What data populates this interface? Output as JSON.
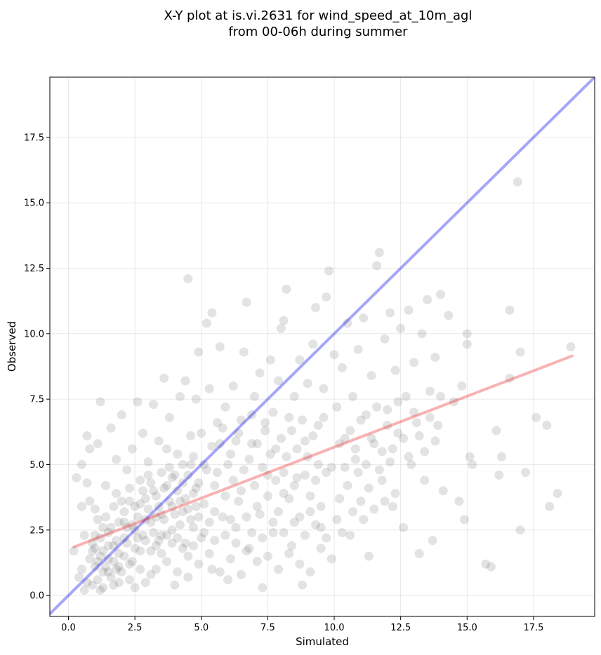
{
  "chart_data": {
    "type": "scatter",
    "title": "X-Y plot at is.vi.2631 for wind_speed_at_10m_agl",
    "subtitle": "from 00-06h during summer",
    "xlabel": "Simulated",
    "ylabel": "Observed",
    "xlim": [
      -0.7,
      19.8
    ],
    "ylim": [
      -0.8,
      19.8
    ],
    "xticks": [
      "0.0",
      "2.5",
      "5.0",
      "7.5",
      "10.0",
      "12.5",
      "15.0",
      "17.5"
    ],
    "yticks": [
      "0.0",
      "2.5",
      "5.0",
      "7.5",
      "10.0",
      "12.5",
      "15.0",
      "17.5"
    ],
    "grid": true,
    "point_color": "#404040",
    "point_opacity": 0.15,
    "reference_line": {
      "color": "#0000ee",
      "x": [
        -0.7,
        19.8
      ],
      "y": [
        -0.7,
        19.8
      ]
    },
    "regression_line": {
      "color": "#ee2222",
      "x": [
        0.2,
        18.95
      ],
      "y": [
        1.85,
        9.15
      ]
    },
    "points": [
      [
        0.2,
        1.7
      ],
      [
        0.3,
        4.5
      ],
      [
        0.4,
        0.7
      ],
      [
        0.5,
        3.4
      ],
      [
        0.5,
        5.0
      ],
      [
        0.6,
        2.3
      ],
      [
        0.7,
        6.1
      ],
      [
        0.7,
        4.3
      ],
      [
        0.8,
        3.6
      ],
      [
        0.8,
        5.6
      ],
      [
        0.9,
        0.4
      ],
      [
        0.9,
        2.0
      ],
      [
        1.0,
        1.1
      ],
      [
        1.0,
        3.3
      ],
      [
        1.1,
        5.8
      ],
      [
        1.2,
        7.4
      ],
      [
        1.2,
        0.2
      ],
      [
        1.3,
        2.6
      ],
      [
        1.4,
        4.2
      ],
      [
        1.5,
        0.9
      ],
      [
        1.6,
        6.4
      ],
      [
        1.7,
        1.9
      ],
      [
        1.8,
        3.9
      ],
      [
        1.8,
        5.2
      ],
      [
        1.9,
        0.5
      ],
      [
        2.0,
        6.9
      ],
      [
        2.1,
        2.8
      ],
      [
        2.2,
        4.8
      ],
      [
        2.3,
        1.2
      ],
      [
        2.4,
        5.6
      ],
      [
        2.5,
        0.3
      ],
      [
        2.6,
        7.4
      ],
      [
        2.7,
        3.5
      ],
      [
        2.8,
        6.2
      ],
      [
        2.9,
        2.1
      ],
      [
        3.0,
        4.6
      ],
      [
        3.1,
        0.8
      ],
      [
        3.2,
        7.3
      ],
      [
        3.3,
        3.0
      ],
      [
        3.4,
        5.9
      ],
      [
        3.5,
        1.6
      ],
      [
        3.6,
        8.3
      ],
      [
        3.7,
        4.2
      ],
      [
        3.8,
        6.8
      ],
      [
        3.9,
        2.5
      ],
      [
        4.0,
        0.4
      ],
      [
        4.1,
        5.4
      ],
      [
        4.2,
        7.6
      ],
      [
        4.3,
        3.2
      ],
      [
        4.4,
        8.2
      ],
      [
        4.5,
        12.1
      ],
      [
        4.5,
        1.5
      ],
      [
        4.6,
        6.1
      ],
      [
        4.7,
        3.9
      ],
      [
        4.8,
        7.5
      ],
      [
        4.9,
        9.3
      ],
      [
        5.0,
        2.2
      ],
      [
        5.1,
        5.0
      ],
      [
        5.2,
        10.4
      ],
      [
        5.3,
        7.9
      ],
      [
        5.4,
        10.8
      ],
      [
        5.4,
        1.0
      ],
      [
        5.5,
        4.2
      ],
      [
        5.6,
        6.6
      ],
      [
        5.7,
        9.5
      ],
      [
        5.8,
        3.0
      ],
      [
        5.9,
        7.2
      ],
      [
        6.0,
        0.6
      ],
      [
        6.1,
        5.4
      ],
      [
        6.2,
        8.0
      ],
      [
        6.3,
        2.6
      ],
      [
        6.4,
        6.2
      ],
      [
        6.5,
        4.0
      ],
      [
        6.6,
        9.3
      ],
      [
        6.7,
        11.2
      ],
      [
        6.8,
        1.8
      ],
      [
        6.9,
        5.8
      ],
      [
        7.0,
        7.6
      ],
      [
        7.1,
        3.4
      ],
      [
        7.2,
        8.5
      ],
      [
        7.3,
        0.3
      ],
      [
        7.4,
        6.3
      ],
      [
        7.5,
        4.6
      ],
      [
        7.6,
        9.0
      ],
      [
        7.7,
        2.4
      ],
      [
        7.8,
        5.6
      ],
      [
        7.9,
        8.2
      ],
      [
        8.0,
        10.2
      ],
      [
        8.1,
        3.9
      ],
      [
        8.1,
        10.5
      ],
      [
        8.2,
        11.7
      ],
      [
        8.3,
        6.8
      ],
      [
        8.4,
        1.9
      ],
      [
        8.5,
        7.6
      ],
      [
        8.6,
        4.5
      ],
      [
        8.7,
        9.0
      ],
      [
        8.8,
        0.4
      ],
      [
        8.9,
        5.9
      ],
      [
        9.0,
        8.1
      ],
      [
        9.1,
        3.2
      ],
      [
        9.2,
        9.6
      ],
      [
        9.3,
        11.0
      ],
      [
        9.4,
        6.5
      ],
      [
        9.5,
        2.6
      ],
      [
        9.6,
        7.9
      ],
      [
        9.7,
        11.4
      ],
      [
        9.8,
        12.4
      ],
      [
        9.9,
        4.9
      ],
      [
        10.0,
        9.2
      ],
      [
        10.1,
        7.2
      ],
      [
        10.2,
        3.7
      ],
      [
        10.3,
        8.7
      ],
      [
        10.4,
        6.0
      ],
      [
        10.5,
        10.4
      ],
      [
        10.6,
        2.3
      ],
      [
        10.7,
        7.6
      ],
      [
        10.8,
        5.2
      ],
      [
        10.9,
        9.4
      ],
      [
        11.0,
        3.6
      ],
      [
        11.1,
        10.6
      ],
      [
        11.2,
        6.9
      ],
      [
        11.3,
        1.5
      ],
      [
        11.4,
        8.4
      ],
      [
        11.5,
        5.8
      ],
      [
        11.6,
        12.6
      ],
      [
        11.7,
        13.1
      ],
      [
        11.8,
        4.4
      ],
      [
        11.9,
        9.8
      ],
      [
        12.0,
        7.1
      ],
      [
        12.1,
        10.8
      ],
      [
        12.2,
        3.4
      ],
      [
        12.3,
        8.6
      ],
      [
        12.4,
        6.2
      ],
      [
        12.5,
        10.2
      ],
      [
        12.6,
        2.6
      ],
      [
        12.7,
        7.6
      ],
      [
        12.8,
        10.9
      ],
      [
        12.9,
        5.0
      ],
      [
        13.0,
        8.9
      ],
      [
        13.1,
        6.6
      ],
      [
        13.2,
        1.6
      ],
      [
        13.3,
        10.0
      ],
      [
        13.4,
        4.4
      ],
      [
        13.5,
        11.3
      ],
      [
        13.6,
        7.8
      ],
      [
        13.7,
        2.1
      ],
      [
        13.8,
        9.1
      ],
      [
        13.9,
        6.5
      ],
      [
        14.0,
        11.5
      ],
      [
        14.1,
        4.0
      ],
      [
        14.3,
        10.7
      ],
      [
        14.5,
        7.4
      ],
      [
        14.7,
        3.6
      ],
      [
        14.8,
        8.0
      ],
      [
        14.9,
        2.9
      ],
      [
        15.0,
        10.0
      ],
      [
        15.0,
        9.6
      ],
      [
        15.1,
        5.3
      ],
      [
        15.2,
        5.0
      ],
      [
        15.7,
        1.2
      ],
      [
        15.9,
        1.1
      ],
      [
        16.1,
        6.3
      ],
      [
        16.2,
        4.6
      ],
      [
        16.3,
        5.3
      ],
      [
        16.6,
        10.9
      ],
      [
        16.6,
        8.3
      ],
      [
        16.9,
        15.8
      ],
      [
        17.0,
        9.3
      ],
      [
        17.0,
        2.5
      ],
      [
        17.2,
        4.7
      ],
      [
        17.6,
        6.8
      ],
      [
        18.0,
        6.5
      ],
      [
        18.1,
        3.4
      ],
      [
        18.4,
        3.9
      ],
      [
        18.9,
        9.5
      ],
      [
        0.6,
        0.2
      ],
      [
        0.8,
        1.4
      ],
      [
        1.0,
        2.3
      ],
      [
        1.1,
        0.6
      ],
      [
        1.2,
        1.5
      ],
      [
        1.3,
        0.3
      ],
      [
        1.4,
        1.1
      ],
      [
        1.5,
        2.4
      ],
      [
        1.6,
        0.7
      ],
      [
        1.7,
        1.3
      ],
      [
        1.8,
        2.1
      ],
      [
        1.9,
        1.6
      ],
      [
        2.0,
        0.9
      ],
      [
        2.1,
        3.2
      ],
      [
        2.2,
        2.0
      ],
      [
        2.3,
        3.6
      ],
      [
        2.4,
        2.7
      ],
      [
        2.5,
        1.8
      ],
      [
        2.6,
        3.0
      ],
      [
        2.7,
        4.4
      ],
      [
        2.8,
        2.3
      ],
      [
        2.9,
        3.7
      ],
      [
        3.0,
        5.1
      ],
      [
        3.1,
        2.8
      ],
      [
        3.2,
        4.0
      ],
      [
        3.3,
        1.9
      ],
      [
        3.4,
        3.4
      ],
      [
        3.5,
        4.7
      ],
      [
        3.6,
        2.9
      ],
      [
        3.7,
        5.6
      ],
      [
        3.8,
        3.6
      ],
      [
        3.9,
        4.5
      ],
      [
        4.0,
        3.1
      ],
      [
        4.1,
        4.0
      ],
      [
        4.2,
        2.7
      ],
      [
        4.3,
        5.0
      ],
      [
        4.4,
        3.7
      ],
      [
        4.5,
        4.6
      ],
      [
        4.6,
        2.9
      ],
      [
        4.7,
        5.3
      ],
      [
        4.8,
        3.4
      ],
      [
        4.9,
        4.3
      ],
      [
        5.0,
        6.2
      ],
      [
        5.1,
        3.5
      ],
      [
        5.2,
        4.8
      ],
      [
        5.3,
        2.8
      ],
      [
        5.4,
        5.7
      ],
      [
        5.5,
        3.2
      ],
      [
        5.6,
        4.7
      ],
      [
        5.7,
        5.8
      ],
      [
        5.8,
        6.4
      ],
      [
        5.9,
        3.8
      ],
      [
        6.0,
        5.0
      ],
      [
        6.1,
        2.9
      ],
      [
        6.2,
        4.4
      ],
      [
        6.3,
        5.9
      ],
      [
        6.4,
        3.6
      ],
      [
        6.5,
        6.7
      ],
      [
        6.6,
        4.8
      ],
      [
        6.7,
        3.0
      ],
      [
        6.8,
        5.2
      ],
      [
        6.9,
        6.9
      ],
      [
        7.0,
        4.2
      ],
      [
        7.1,
        5.8
      ],
      [
        7.2,
        3.1
      ],
      [
        7.3,
        4.9
      ],
      [
        7.4,
        6.6
      ],
      [
        7.5,
        3.8
      ],
      [
        7.6,
        5.4
      ],
      [
        7.7,
        7.0
      ],
      [
        7.8,
        4.4
      ],
      [
        7.9,
        3.2
      ],
      [
        8.0,
        6.0
      ],
      [
        8.1,
        4.7
      ],
      [
        8.2,
        5.3
      ],
      [
        8.3,
        3.7
      ],
      [
        8.4,
        6.3
      ],
      [
        8.5,
        4.2
      ],
      [
        8.6,
        5.6
      ],
      [
        8.7,
        3.0
      ],
      [
        8.8,
        6.7
      ],
      [
        8.9,
        4.6
      ],
      [
        9.0,
        5.3
      ],
      [
        9.1,
        3.8
      ],
      [
        9.2,
        6.1
      ],
      [
        9.3,
        4.4
      ],
      [
        9.4,
        5.0
      ],
      [
        9.5,
        3.4
      ],
      [
        9.6,
        6.8
      ],
      [
        9.7,
        4.7
      ],
      [
        1.0,
        1.8
      ],
      [
        1.1,
        2.9
      ],
      [
        1.2,
        2.2
      ],
      [
        1.3,
        1.7
      ],
      [
        1.4,
        3.0
      ],
      [
        1.5,
        1.4
      ],
      [
        1.6,
        2.6
      ],
      [
        1.7,
        3.4
      ],
      [
        1.8,
        1.0
      ],
      [
        1.9,
        2.8
      ],
      [
        2.0,
        3.6
      ],
      [
        2.1,
        1.5
      ],
      [
        2.2,
        2.6
      ],
      [
        2.3,
        4.1
      ],
      [
        2.4,
        1.3
      ],
      [
        2.5,
        3.4
      ],
      [
        2.6,
        2.2
      ],
      [
        2.7,
        1.0
      ],
      [
        2.8,
        4.0
      ],
      [
        2.9,
        2.9
      ],
      [
        3.0,
        3.3
      ],
      [
        3.1,
        4.3
      ],
      [
        3.2,
        2.4
      ],
      [
        3.3,
        3.8
      ],
      [
        3.4,
        2.1
      ],
      [
        3.5,
        3.1
      ],
      [
        3.6,
        4.1
      ],
      [
        3.7,
        2.3
      ],
      [
        3.8,
        4.9
      ],
      [
        3.9,
        3.4
      ],
      [
        4.0,
        4.6
      ],
      [
        4.1,
        2.2
      ],
      [
        4.2,
        3.6
      ],
      [
        4.3,
        4.3
      ],
      [
        4.4,
        2.0
      ],
      [
        4.5,
        3.3
      ],
      [
        4.6,
        5.0
      ],
      [
        4.7,
        2.6
      ],
      [
        4.8,
        4.1
      ],
      [
        4.9,
        3.0
      ],
      [
        0.5,
        1.0
      ],
      [
        0.7,
        0.5
      ],
      [
        0.9,
        1.7
      ],
      [
        1.1,
        1.3
      ],
      [
        1.3,
        0.9
      ],
      [
        1.5,
        1.9
      ],
      [
        1.7,
        0.4
      ],
      [
        1.9,
        1.1
      ],
      [
        2.1,
        2.2
      ],
      [
        2.3,
        0.6
      ],
      [
        2.5,
        2.5
      ],
      [
        2.7,
        1.7
      ],
      [
        2.9,
        0.5
      ],
      [
        3.1,
        1.7
      ],
      [
        3.3,
        1.0
      ],
      [
        3.5,
        2.3
      ],
      [
        3.7,
        1.3
      ],
      [
        3.9,
        2.0
      ],
      [
        4.1,
        0.9
      ],
      [
        4.3,
        1.8
      ],
      [
        4.5,
        0.7
      ],
      [
        4.7,
        1.9
      ],
      [
        4.9,
        1.2
      ],
      [
        5.1,
        2.4
      ],
      [
        5.3,
        1.6
      ],
      [
        5.5,
        2.1
      ],
      [
        5.7,
        0.9
      ],
      [
        5.9,
        2.3
      ],
      [
        6.1,
        1.4
      ],
      [
        6.3,
        2.0
      ],
      [
        6.5,
        0.8
      ],
      [
        6.7,
        1.7
      ],
      [
        6.9,
        2.4
      ],
      [
        7.1,
        1.3
      ],
      [
        7.3,
        2.2
      ],
      [
        7.5,
        1.5
      ],
      [
        7.7,
        2.8
      ],
      [
        7.9,
        1.0
      ],
      [
        8.1,
        2.4
      ],
      [
        8.3,
        1.6
      ],
      [
        8.5,
        2.8
      ],
      [
        8.7,
        1.2
      ],
      [
        8.9,
        2.3
      ],
      [
        9.1,
        0.9
      ],
      [
        9.3,
        2.7
      ],
      [
        9.5,
        1.8
      ],
      [
        9.7,
        2.2
      ],
      [
        9.9,
        1.4
      ],
      [
        10.1,
        2.9
      ],
      [
        10.3,
        2.4
      ],
      [
        10.5,
        4.2
      ],
      [
        10.7,
        3.2
      ],
      [
        10.9,
        4.7
      ],
      [
        11.1,
        2.9
      ],
      [
        11.3,
        4.1
      ],
      [
        11.5,
        3.3
      ],
      [
        11.7,
        4.8
      ],
      [
        11.9,
        3.6
      ],
      [
        12.1,
        5.1
      ],
      [
        12.3,
        3.9
      ],
      [
        10.2,
        5.8
      ],
      [
        10.4,
        4.9
      ],
      [
        10.6,
        6.3
      ],
      [
        10.8,
        5.6
      ],
      [
        11.0,
        6.7
      ],
      [
        11.2,
        5.0
      ],
      [
        11.4,
        6.0
      ],
      [
        11.6,
        7.2
      ],
      [
        11.8,
        5.5
      ],
      [
        12.0,
        6.5
      ],
      [
        12.2,
        5.6
      ],
      [
        12.4,
        7.4
      ],
      [
        12.6,
        6.0
      ],
      [
        12.8,
        5.3
      ],
      [
        13.0,
        7.0
      ],
      [
        13.2,
        6.1
      ],
      [
        13.4,
        5.5
      ],
      [
        13.6,
        6.8
      ],
      [
        13.8,
        5.9
      ],
      [
        14.0,
        7.6
      ]
    ]
  }
}
